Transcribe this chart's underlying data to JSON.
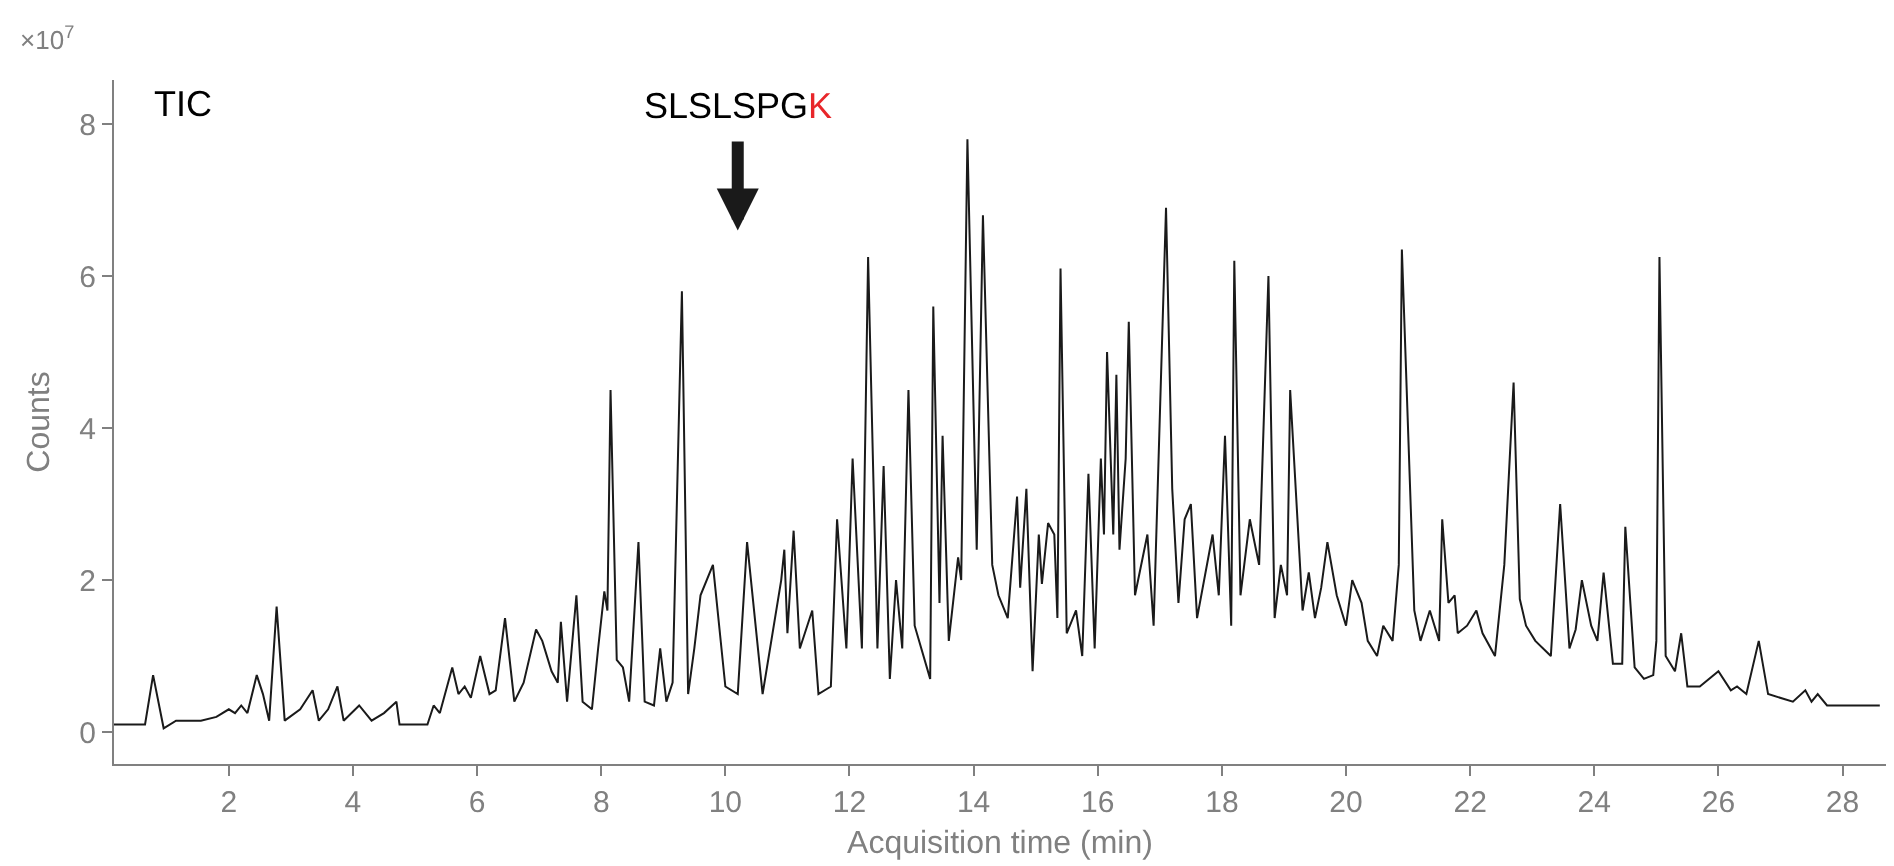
{
  "chart_data": {
    "type": "line",
    "xlabel": "Acquisition time (min)",
    "ylabel": "Counts",
    "annotations": [
      "TIC",
      "×10$^{7}$",
      "SLSLSPGK"
    ],
    "xlim": [
      0.15,
      28.7
    ],
    "xticks": [
      2,
      4,
      6,
      8,
      10,
      12,
      14,
      16,
      18,
      20,
      22,
      24,
      26,
      28
    ],
    "ylim": [
      -0.42,
      8.58
    ],
    "yticks": [
      0,
      2,
      4,
      6,
      8
    ],
    "marker": "none",
    "line_style": "solid",
    "series": [
      {
        "color": "#1a1a1a",
        "x": [
          0.15,
          0.65,
          0.78,
          0.95,
          1.15,
          1.55,
          1.8,
          2.0,
          2.1,
          2.2,
          2.3,
          2.45,
          2.55,
          2.65,
          2.77,
          2.9,
          3.15,
          3.35,
          3.45,
          3.6,
          3.75,
          3.85,
          4.1,
          4.3,
          4.5,
          4.7,
          4.75,
          5.0,
          5.2,
          5.3,
          5.4,
          5.6,
          5.7,
          5.8,
          5.9,
          6.05,
          6.2,
          6.3,
          6.45,
          6.6,
          6.75,
          6.95,
          7.05,
          7.2,
          7.3,
          7.35,
          7.45,
          7.6,
          7.7,
          7.85,
          7.95,
          8.05,
          8.1,
          8.15,
          8.25,
          8.35,
          8.45,
          8.6,
          8.7,
          8.85,
          8.95,
          9.05,
          9.15,
          9.3,
          9.4,
          9.5,
          9.6,
          9.8,
          10.0,
          10.2,
          10.35,
          10.6,
          10.9,
          10.95,
          11.0,
          11.1,
          11.2,
          11.4,
          11.5,
          11.7,
          11.8,
          11.95,
          12.05,
          12.2,
          12.3,
          12.45,
          12.55,
          12.65,
          12.75,
          12.85,
          12.95,
          13.05,
          13.3,
          13.35,
          13.45,
          13.5,
          13.6,
          13.75,
          13.8,
          13.9,
          14.05,
          14.15,
          14.3,
          14.4,
          14.55,
          14.7,
          14.75,
          14.85,
          14.95,
          15.05,
          15.1,
          15.2,
          15.3,
          15.35,
          15.4,
          15.5,
          15.65,
          15.75,
          15.85,
          15.95,
          16.05,
          16.1,
          16.15,
          16.25,
          16.3,
          16.35,
          16.45,
          16.5,
          16.6,
          16.8,
          16.9,
          17.1,
          17.2,
          17.3,
          17.4,
          17.5,
          17.6,
          17.85,
          17.95,
          18.05,
          18.15,
          18.2,
          18.3,
          18.45,
          18.55,
          18.6,
          18.75,
          18.85,
          18.95,
          19.05,
          19.1,
          19.3,
          19.4,
          19.5,
          19.6,
          19.7,
          19.85,
          20.0,
          20.1,
          20.25,
          20.35,
          20.5,
          20.6,
          20.75,
          20.85,
          20.9,
          21.1,
          21.2,
          21.35,
          21.5,
          21.55,
          21.65,
          21.75,
          21.8,
          21.95,
          22.1,
          22.2,
          22.4,
          22.55,
          22.7,
          22.8,
          22.9,
          23.05,
          23.3,
          23.45,
          23.6,
          23.7,
          23.8,
          23.95,
          24.05,
          24.15,
          24.3,
          24.45,
          24.5,
          24.65,
          24.8,
          24.95,
          25.0,
          25.05,
          25.15,
          25.3,
          25.4,
          25.5,
          25.7,
          26.0,
          26.2,
          26.3,
          26.45,
          26.65,
          26.8,
          27.2,
          27.4,
          27.5,
          27.6,
          27.75,
          28.6
        ],
        "values": [
          0.1,
          0.1,
          0.75,
          0.05,
          0.15,
          0.15,
          0.2,
          0.3,
          0.25,
          0.35,
          0.25,
          0.75,
          0.5,
          0.15,
          1.65,
          0.15,
          0.3,
          0.55,
          0.15,
          0.3,
          0.6,
          0.15,
          0.35,
          0.15,
          0.25,
          0.4,
          0.1,
          0.1,
          0.1,
          0.35,
          0.25,
          0.85,
          0.5,
          0.6,
          0.45,
          1.0,
          0.5,
          0.55,
          1.5,
          0.4,
          0.65,
          1.35,
          1.2,
          0.8,
          0.65,
          1.45,
          0.4,
          1.8,
          0.4,
          0.3,
          1.1,
          1.85,
          1.6,
          4.5,
          0.95,
          0.85,
          0.4,
          2.5,
          0.4,
          0.35,
          1.1,
          0.4,
          0.65,
          5.8,
          0.5,
          1.1,
          1.8,
          2.2,
          0.6,
          0.5,
          2.5,
          0.5,
          2.0,
          2.4,
          1.3,
          2.65,
          1.1,
          1.6,
          0.5,
          0.6,
          2.8,
          1.1,
          3.6,
          1.1,
          6.25,
          1.1,
          3.5,
          0.7,
          2.0,
          1.1,
          4.5,
          1.4,
          0.7,
          5.6,
          1.7,
          3.9,
          1.2,
          2.3,
          2.0,
          7.8,
          2.4,
          6.8,
          2.2,
          1.8,
          1.5,
          3.1,
          1.9,
          3.2,
          0.8,
          2.6,
          1.95,
          2.75,
          2.6,
          1.5,
          6.1,
          1.3,
          1.6,
          1.0,
          3.4,
          1.1,
          3.6,
          2.6,
          5.0,
          2.6,
          4.7,
          2.4,
          3.6,
          5.4,
          1.8,
          2.6,
          1.4,
          6.9,
          3.2,
          1.7,
          2.8,
          3.0,
          1.5,
          2.6,
          1.8,
          3.9,
          1.4,
          6.2,
          1.8,
          2.8,
          2.4,
          2.2,
          6.0,
          1.5,
          2.2,
          1.8,
          4.5,
          1.6,
          2.1,
          1.5,
          1.9,
          2.5,
          1.8,
          1.4,
          2.0,
          1.7,
          1.2,
          1.0,
          1.4,
          1.2,
          2.2,
          6.35,
          1.6,
          1.2,
          1.6,
          1.2,
          2.8,
          1.7,
          1.8,
          1.3,
          1.4,
          1.6,
          1.3,
          1.0,
          2.2,
          4.6,
          1.75,
          1.4,
          1.2,
          1.0,
          3.0,
          1.1,
          1.35,
          2.0,
          1.4,
          1.2,
          2.1,
          0.9,
          0.9,
          2.7,
          0.85,
          0.7,
          0.75,
          1.2,
          6.25,
          1.0,
          0.8,
          1.3,
          0.6,
          0.6,
          0.8,
          0.55,
          0.6,
          0.5,
          1.2,
          0.5,
          0.4,
          0.55,
          0.4,
          0.5,
          0.35,
          0.35
        ]
      }
    ]
  }
}
